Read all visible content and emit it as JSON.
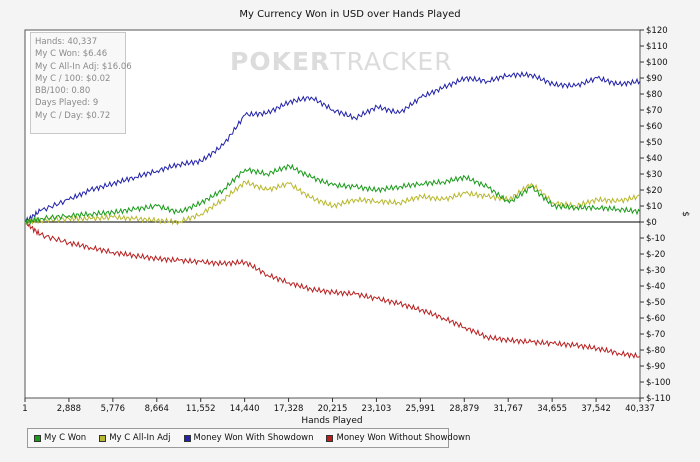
{
  "chart_data": {
    "type": "line",
    "title": "My Currency Won in USD over Hands Played",
    "xlabel": "Hands Played",
    "ylabel": "$",
    "xlim": [
      1,
      40337
    ],
    "ylim": [
      -110,
      120
    ],
    "x_ticks": [
      "1",
      "2,888",
      "5,776",
      "8,664",
      "11,552",
      "14,440",
      "17,328",
      "20,215",
      "23,103",
      "25,991",
      "28,879",
      "31,767",
      "34,655",
      "37,542",
      "40,337"
    ],
    "y_ticks": [
      "$120",
      "$110",
      "$100",
      "$90",
      "$80",
      "$70",
      "$60",
      "$50",
      "$40",
      "$30",
      "$20",
      "$10",
      "$0",
      "$-10",
      "$-20",
      "$-30",
      "$-40",
      "$-50",
      "$-60",
      "$-70",
      "$-80",
      "$-90",
      "$-100",
      "$-110"
    ],
    "x": [
      1,
      1000,
      2888,
      4300,
      5776,
      7200,
      8664,
      10100,
      11552,
      13000,
      14440,
      15880,
      17328,
      18770,
      20215,
      21660,
      23103,
      24550,
      25991,
      27440,
      28879,
      30320,
      31767,
      33210,
      34655,
      36100,
      37542,
      38940,
      40337
    ],
    "series": [
      {
        "name": "My C Won",
        "color": "#1a9a1a",
        "values": [
          0,
          2,
          4,
          5,
          6,
          8,
          10,
          6,
          12,
          20,
          33,
          30,
          35,
          28,
          23,
          22,
          20,
          22,
          24,
          25,
          28,
          22,
          12,
          22,
          10,
          9,
          9,
          8,
          6.46
        ]
      },
      {
        "name": "My C All-In Adj",
        "color": "#b8b830",
        "values": [
          0,
          1,
          2,
          2,
          3,
          2,
          1,
          0,
          5,
          14,
          25,
          20,
          24,
          15,
          10,
          14,
          13,
          12,
          16,
          14,
          18,
          16,
          14,
          24,
          12,
          10,
          14,
          13,
          16.06
        ]
      },
      {
        "name": "Money Won With Showdown",
        "color": "#2222aa",
        "values": [
          0,
          7,
          14,
          20,
          24,
          28,
          32,
          36,
          38,
          48,
          67,
          68,
          75,
          78,
          70,
          65,
          72,
          68,
          78,
          84,
          90,
          88,
          92,
          92,
          86,
          85,
          90,
          86,
          88
        ]
      },
      {
        "name": "Money Won Without Showdown",
        "color": "#b82020",
        "values": [
          0,
          -8,
          -13,
          -16,
          -19,
          -21,
          -23,
          -24,
          -25,
          -26,
          -25,
          -33,
          -38,
          -42,
          -44,
          -45,
          -48,
          -51,
          -55,
          -60,
          -66,
          -72,
          -74,
          -75,
          -76,
          -77,
          -79,
          -82,
          -84
        ]
      }
    ],
    "grid": false,
    "legend": "bottom-left"
  },
  "stats": [
    "Hands: 40,337",
    "My C Won: $6.46",
    "My C All-In Adj: $16.06",
    "My C / 100: $0.02",
    "BB/100: 0.80",
    "Days Played: 9",
    "My C / Day: $0.72"
  ],
  "watermark": {
    "brand_bold": "POKER",
    "brand_light": "TRACKER"
  }
}
